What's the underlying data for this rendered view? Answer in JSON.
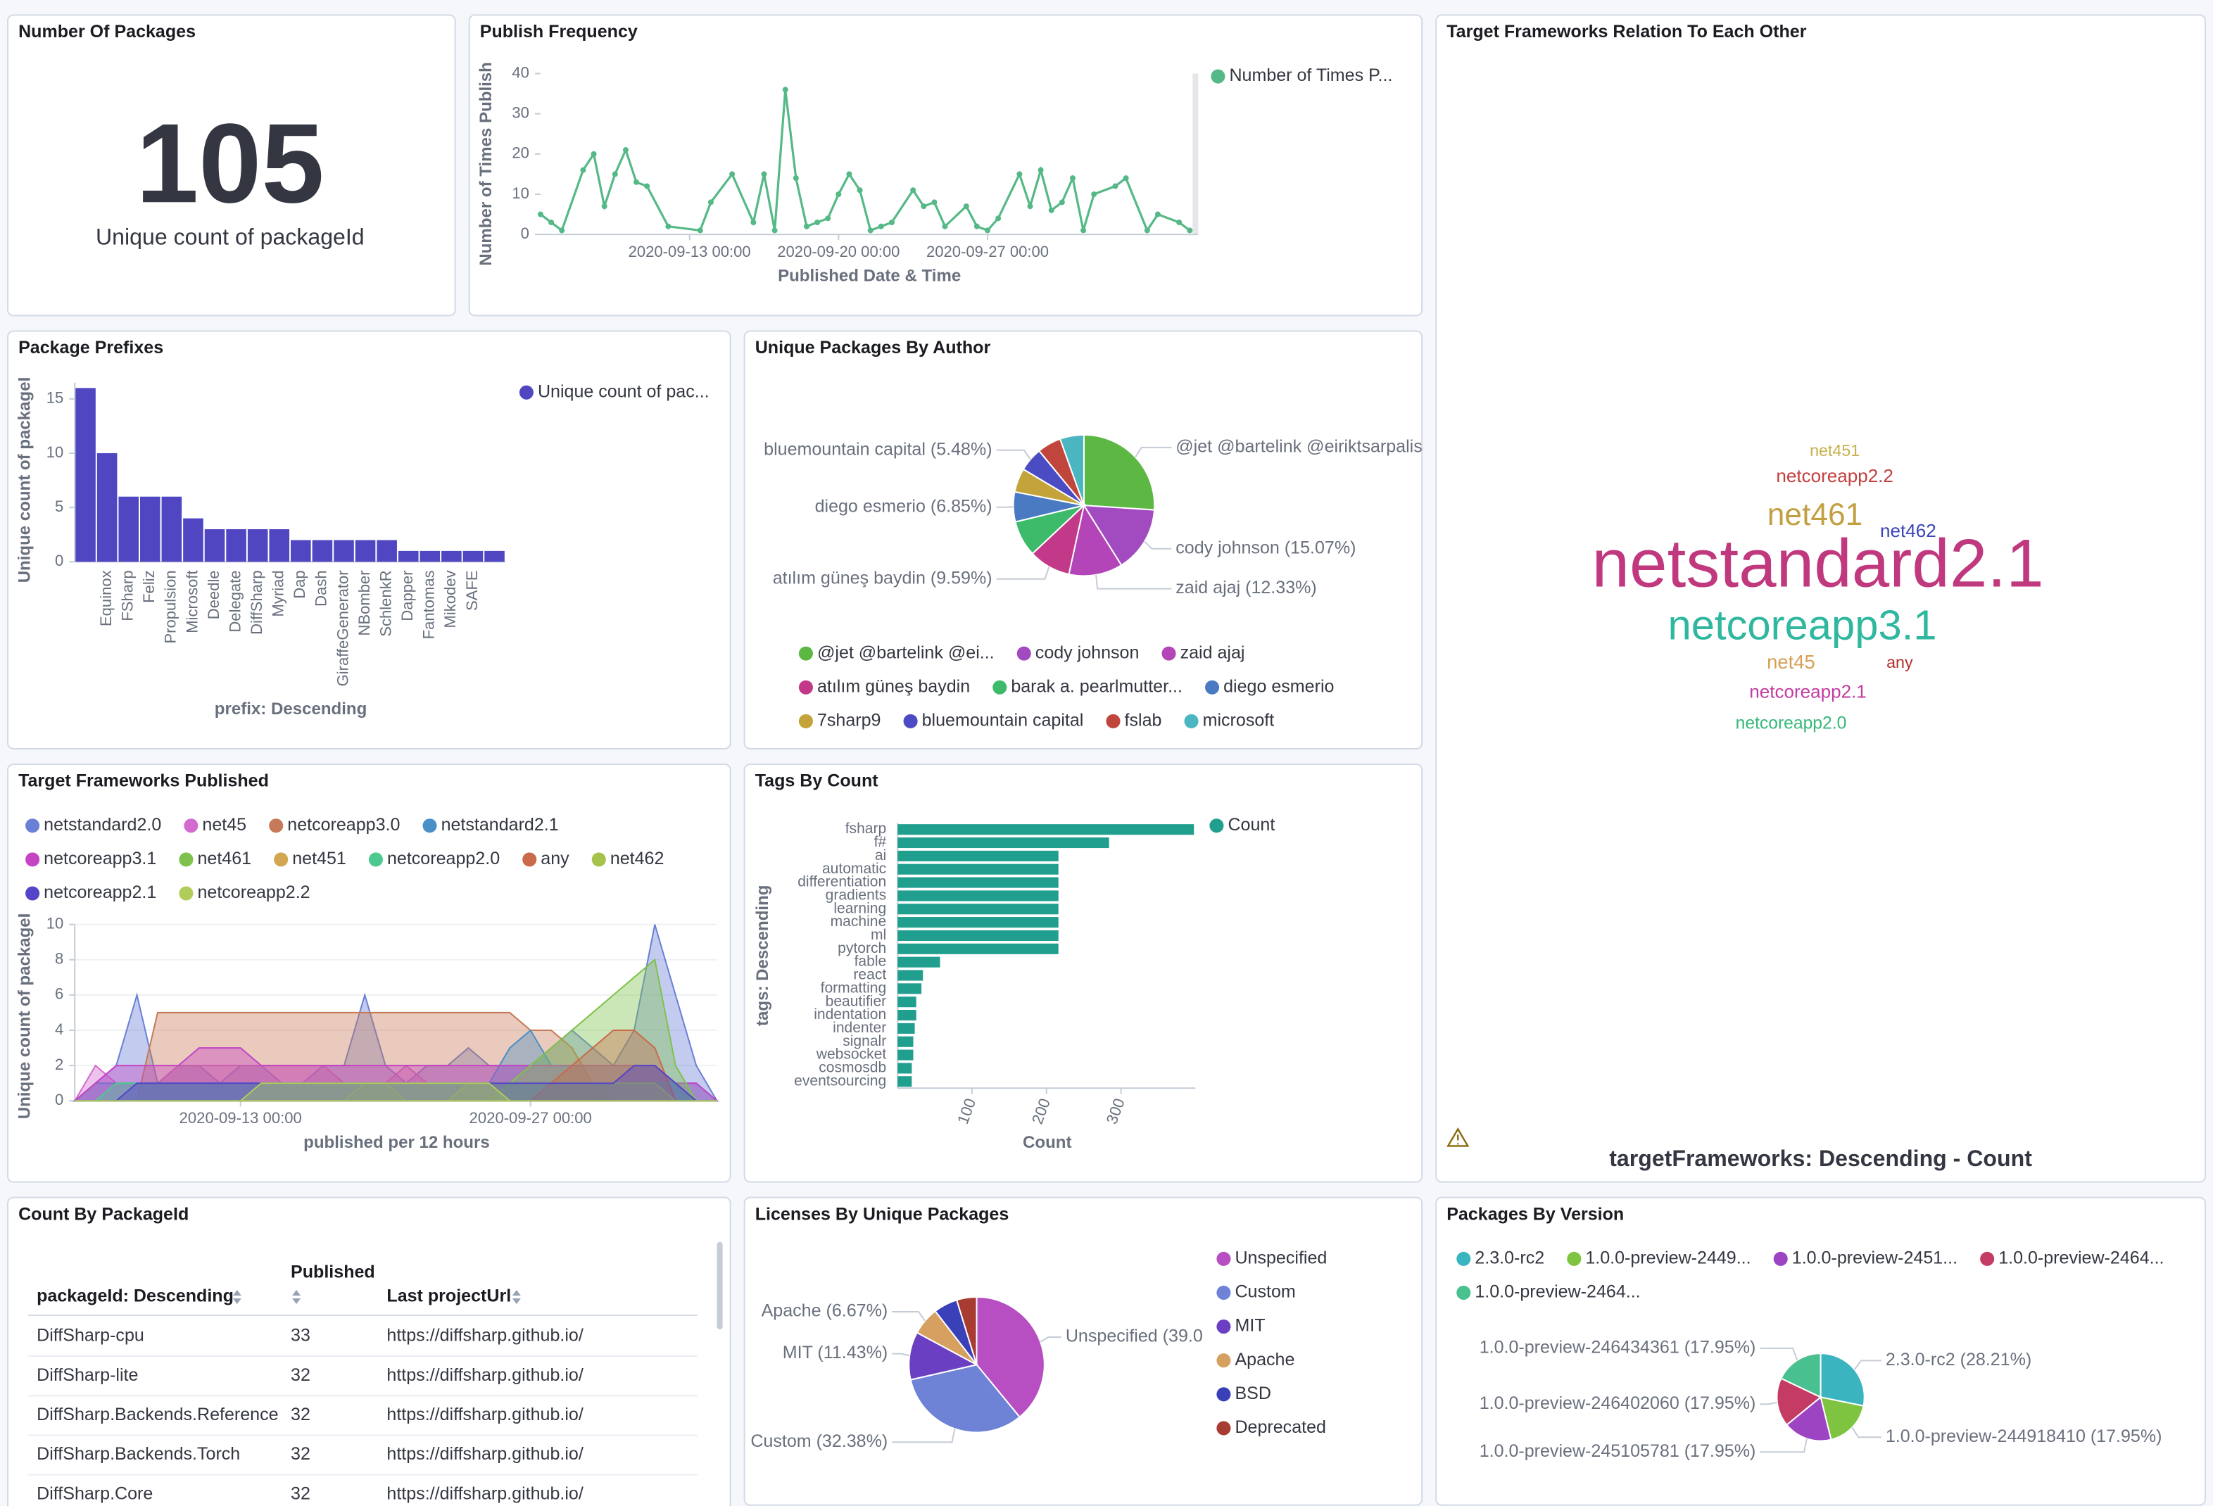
{
  "chart_data": [
    {
      "type": "metric",
      "title": "Number Of Packages",
      "value": 105,
      "label": "Unique count of packageId"
    },
    {
      "type": "line",
      "title": "Publish Frequency",
      "y_label": "Number of Times Publish",
      "x_label": "Published Date & Time",
      "x": [
        "2020-09-06 00:00",
        "2020-09-06 12:00",
        "2020-09-07 00:00",
        "2020-09-08 00:00",
        "2020-09-08 12:00",
        "2020-09-09 00:00",
        "2020-09-09 12:00",
        "2020-09-10 00:00",
        "2020-09-10 12:00",
        "2020-09-11 00:00",
        "2020-09-12 00:00",
        "2020-09-13 12:00",
        "2020-09-14 00:00",
        "2020-09-15 00:00",
        "2020-09-16 00:00",
        "2020-09-16 12:00",
        "2020-09-17 00:00",
        "2020-09-17 12:00",
        "2020-09-18 00:00",
        "2020-09-18 12:00",
        "2020-09-19 00:00",
        "2020-09-19 12:00",
        "2020-09-20 00:00",
        "2020-09-20 12:00",
        "2020-09-21 00:00",
        "2020-09-21 12:00",
        "2020-09-22 00:00",
        "2020-09-22 12:00",
        "2020-09-23 12:00",
        "2020-09-24 00:00",
        "2020-09-24 12:00",
        "2020-09-25 00:00",
        "2020-09-26 00:00",
        "2020-09-26 12:00",
        "2020-09-27 00:00",
        "2020-09-27 12:00",
        "2020-09-28 12:00",
        "2020-09-29 00:00",
        "2020-09-29 12:00",
        "2020-09-30 00:00",
        "2020-09-30 12:00",
        "2020-10-01 00:00",
        "2020-10-01 12:00",
        "2020-10-02 00:00",
        "2020-10-03 00:00",
        "2020-10-03 12:00",
        "2020-10-04 12:00",
        "2020-10-05 00:00",
        "2020-10-06 00:00",
        "2020-10-06 12:00"
      ],
      "series": [
        {
          "name": "Number of Times P...",
          "color": "#54b986",
          "values": [
            5,
            3,
            1,
            16,
            20,
            7,
            15,
            21,
            13,
            12,
            2,
            1,
            8,
            15,
            3,
            15,
            1,
            36,
            14,
            2,
            3,
            4,
            10,
            15,
            11,
            1,
            2,
            3,
            11,
            7,
            8,
            2,
            7,
            2,
            1,
            4,
            15,
            7,
            16,
            6,
            8,
            14,
            1,
            10,
            12,
            14,
            1,
            5,
            3,
            1
          ]
        }
      ],
      "xlim": [
        "2020-09-06 00:00",
        "2020-10-06 12:00"
      ],
      "xticks": [
        "2020-09-13 00:00",
        "2020-09-20 00:00",
        "2020-09-27 00:00"
      ],
      "ylim": [
        0,
        40
      ],
      "yticks": [
        0,
        10,
        20,
        30,
        40
      ]
    },
    {
      "type": "bar",
      "title": "Package Prefixes",
      "y_label": "Unique count of packageI",
      "x_label": "prefix: Descending",
      "categories": [
        null,
        "Equinox",
        "FSharp",
        "Feliz",
        "Propulsion",
        "Microsoft",
        "Deedle",
        "Delegate",
        "DiffSharp",
        "Myriad",
        "Dap",
        "Dash",
        "GiraffeGenerator",
        "NBomber",
        "SchlenkR",
        "Dapper",
        "Fantomas",
        "Mikodev",
        "SAFE",
        null
      ],
      "series": [
        {
          "name": "Unique count of pac...",
          "color": "#5046c2",
          "values": [
            16,
            10,
            6,
            6,
            6,
            4,
            3,
            3,
            3,
            3,
            2,
            2,
            2,
            2,
            2,
            1,
            1,
            1,
            1,
            1
          ]
        }
      ],
      "ylim": [
        0,
        16.5
      ],
      "yticks": [
        0,
        5,
        10,
        15
      ]
    },
    {
      "type": "pie",
      "title": "Unique Packages By Author",
      "categories": [
        "@jet @bartelink @ei...",
        "cody johnson",
        "zaid ajaj",
        "atılım güneş baydin",
        "barak a. pearlmutter...",
        "diego esmerio",
        "7sharp9",
        "bluemountain capital",
        "fslab",
        "microsoft"
      ],
      "values": [
        26.03,
        15.07,
        12.33,
        9.59,
        8.22,
        6.85,
        5.48,
        5.48,
        5.48,
        5.48
      ],
      "value_labels": [
        "@jet @bartelink @eiriktsarpalis",
        "cody johnson (15.07%)",
        "zaid ajaj (12.33%)",
        "atılım güneş baydin (9.59%)",
        null,
        "diego esmerio (6.85%)",
        null,
        "bluemountain capital (5.48%)",
        null,
        null
      ],
      "colors": [
        "#5cb843",
        "#a24ac0",
        "#b345b8",
        "#c3398a",
        "#3dbb6b",
        "#4a7ac2",
        "#c4a43a",
        "#4b4bc4",
        "#c0463d",
        "#4bb5c0"
      ]
    },
    {
      "type": "wordcloud",
      "title": "Target Frameworks Relation To Each Other",
      "x_label": "targetFrameworks: Descending - Count",
      "words": [
        "netstandard2.1",
        "netcoreapp3.1",
        "net461",
        "net45",
        "netcoreapp2.1",
        "netcoreapp2.2",
        "net462",
        "netcoreapp2.0",
        "net451",
        "any"
      ],
      "values": [
        60,
        34,
        23,
        11,
        10,
        10,
        10,
        9,
        8,
        8
      ],
      "colors": [
        "#c0397e",
        "#2fb7a0",
        "#c2a041",
        "#d6a058",
        "#c23ca0",
        "#c33f3f",
        "#3a44b5",
        "#35b87a",
        "#c8b04a",
        "#b0302a"
      ]
    },
    {
      "type": "area",
      "title": "Target Frameworks Published",
      "y_label": "Unique count of packageI",
      "x_label": "published per 12 hours",
      "x": [
        "2020-09-05 00:00",
        "2020-09-06 00:00",
        "2020-09-07 00:00",
        "2020-09-08 00:00",
        "2020-09-09 00:00",
        "2020-09-10 00:00",
        "2020-09-11 00:00",
        "2020-09-12 00:00",
        "2020-09-13 00:00",
        "2020-09-14 00:00",
        "2020-09-15 00:00",
        "2020-09-16 00:00",
        "2020-09-17 00:00",
        "2020-09-18 00:00",
        "2020-09-19 00:00",
        "2020-09-20 00:00",
        "2020-09-21 00:00",
        "2020-09-22 00:00",
        "2020-09-23 00:00",
        "2020-09-24 00:00",
        "2020-09-25 00:00",
        "2020-09-26 00:00",
        "2020-09-27 00:00",
        "2020-09-28 00:00",
        "2020-09-29 00:00",
        "2020-09-30 00:00",
        "2020-10-01 00:00",
        "2020-10-02 00:00",
        "2020-10-03 00:00",
        "2020-10-04 00:00",
        "2020-10-05 00:00",
        "2020-10-06 00:00"
      ],
      "series": [
        {
          "name": "netstandard2.0",
          "color": "#6a7fd6",
          "values": [
            0,
            1,
            2,
            6,
            1,
            2,
            2,
            1,
            2,
            2,
            1,
            1,
            2,
            2,
            6,
            2,
            1,
            2,
            2,
            3,
            2,
            2,
            2,
            3,
            4,
            3,
            2,
            4,
            10,
            6,
            2,
            0
          ]
        },
        {
          "name": "net45",
          "color": "#d36ad0",
          "values": [
            0,
            2,
            1,
            1,
            1,
            2,
            2,
            2,
            2,
            2,
            2,
            2,
            2,
            1,
            1,
            1,
            2,
            1,
            1,
            1,
            1,
            1,
            1,
            1,
            1,
            1,
            1,
            1,
            1,
            1,
            0,
            0
          ]
        },
        {
          "name": "netcoreapp3.0",
          "color": "#c77a57",
          "values": [
            0,
            0,
            0,
            0,
            5,
            5,
            5,
            5,
            5,
            5,
            5,
            5,
            5,
            5,
            5,
            5,
            5,
            5,
            5,
            5,
            5,
            5,
            4,
            4,
            3,
            1,
            0,
            0,
            0,
            0,
            0,
            0
          ]
        },
        {
          "name": "netstandard2.1",
          "color": "#4a8fc6",
          "values": [
            0,
            1,
            1,
            1,
            1,
            1,
            1,
            1,
            1,
            1,
            1,
            1,
            1,
            1,
            1,
            1,
            1,
            1,
            1,
            1,
            1,
            3,
            4,
            2,
            2,
            2,
            2,
            2,
            2,
            1,
            1,
            0
          ]
        },
        {
          "name": "netcoreapp3.1",
          "color": "#c444c4",
          "values": [
            0,
            1,
            2,
            2,
            2,
            2,
            3,
            3,
            3,
            2,
            2,
            2,
            2,
            2,
            2,
            2,
            2,
            2,
            2,
            2,
            2,
            2,
            2,
            2,
            2,
            2,
            2,
            2,
            2,
            1,
            1,
            0
          ]
        },
        {
          "name": "net461",
          "color": "#7ec24d",
          "values": [
            0,
            0,
            0,
            0,
            0,
            0,
            0,
            0,
            0,
            0,
            0,
            0,
            0,
            0,
            0,
            0,
            0,
            0,
            0,
            0,
            0,
            1,
            2,
            3,
            4,
            5,
            6,
            7,
            8,
            2,
            0,
            0
          ]
        },
        {
          "name": "net451",
          "color": "#d2a752",
          "values": [
            0,
            0,
            0,
            0,
            0,
            0,
            0,
            0,
            0,
            0,
            0,
            0,
            0,
            0,
            1,
            1,
            0,
            0,
            0,
            0,
            0,
            0,
            0,
            0,
            0,
            0,
            0,
            0,
            0,
            0,
            0,
            0
          ]
        },
        {
          "name": "netcoreapp2.0",
          "color": "#4cc98f",
          "values": [
            0,
            0,
            1,
            1,
            1,
            1,
            1,
            1,
            1,
            1,
            1,
            1,
            1,
            1,
            1,
            1,
            1,
            1,
            1,
            1,
            1,
            1,
            1,
            1,
            1,
            1,
            1,
            1,
            1,
            1,
            0,
            0
          ]
        },
        {
          "name": "any",
          "color": "#c96b4a",
          "values": [
            0,
            0,
            0,
            0,
            0,
            0,
            0,
            0,
            0,
            0,
            0,
            0,
            0,
            0,
            0,
            0,
            0,
            0,
            0,
            0,
            0,
            0,
            0,
            1,
            2,
            3,
            4,
            4,
            3,
            0,
            0,
            0
          ]
        },
        {
          "name": "net462",
          "color": "#a5c24a",
          "values": [
            0,
            0,
            0,
            0,
            0,
            0,
            0,
            0,
            0,
            0,
            0,
            0,
            0,
            0,
            0,
            0,
            0,
            0,
            0,
            1,
            1,
            1,
            1,
            1,
            1,
            1,
            1,
            1,
            1,
            0,
            0,
            0
          ]
        },
        {
          "name": "netcoreapp2.1",
          "color": "#5544c8",
          "values": [
            0,
            0,
            0,
            1,
            1,
            1,
            1,
            1,
            1,
            1,
            1,
            1,
            1,
            1,
            1,
            1,
            1,
            1,
            1,
            1,
            1,
            1,
            1,
            1,
            1,
            1,
            1,
            2,
            2,
            1,
            0,
            0
          ]
        },
        {
          "name": "netcoreapp2.2",
          "color": "#b0cc5a",
          "values": [
            0,
            0,
            0,
            0,
            0,
            0,
            0,
            0,
            0,
            1,
            1,
            1,
            1,
            1,
            1,
            1,
            1,
            1,
            1,
            1,
            1,
            0,
            0,
            0,
            0,
            0,
            0,
            0,
            0,
            0,
            0,
            0
          ]
        }
      ],
      "xlim": [
        "2020-09-05 00:00",
        "2020-10-06 00:00"
      ],
      "xticks": [
        "2020-09-13 00:00",
        "2020-09-27 00:00"
      ],
      "ylim": [
        0,
        10
      ],
      "yticks": [
        0,
        2,
        4,
        6,
        8,
        10
      ],
      "grid": true
    },
    {
      "type": "hbar",
      "title": "Tags By Count",
      "y_label": "tags: Descending",
      "x_label": "Count",
      "categories": [
        "fsharp",
        "f#",
        "ai",
        "automatic",
        "differentiation",
        "gradients",
        "learning",
        "machine",
        "ml",
        "pytorch",
        "fable",
        "react",
        "formatting",
        "beautifier",
        "indentation",
        "indenter",
        "signalr",
        "websocket",
        "cosmosdb",
        "eventsourcing"
      ],
      "series": [
        {
          "name": "Count",
          "color": "#209f8f",
          "values": [
            398,
            284,
            216,
            216,
            216,
            216,
            216,
            216,
            216,
            216,
            57,
            34,
            32,
            25,
            25,
            23,
            21,
            21,
            19,
            19
          ]
        }
      ],
      "xlim": [
        0,
        400
      ],
      "xticks": [
        100,
        200,
        300
      ]
    },
    {
      "type": "pie",
      "title": "Licenses By Unique Packages",
      "categories": [
        "Unspecified",
        "Custom",
        "MIT",
        "Apache",
        "BSD",
        "Deprecated"
      ],
      "values": [
        39.05,
        32.38,
        11.43,
        6.67,
        5.71,
        4.76
      ],
      "value_labels": [
        "Unspecified (39.0",
        "Custom (32.38%)",
        "MIT (11.43%)",
        "Apache (6.67%)",
        null,
        null
      ],
      "colors": [
        "#b74fc2",
        "#6e83d6",
        "#6a3fc2",
        "#d6a060",
        "#3a40b8",
        "#a83c32"
      ]
    },
    {
      "type": "pie",
      "title": "Packages By Version",
      "categories": [
        "2.3.0-rc2",
        "1.0.0-preview-2449...",
        "1.0.0-preview-2451...",
        "1.0.0-preview-2464...",
        "1.0.0-preview-2464..."
      ],
      "values": [
        28.21,
        17.95,
        17.95,
        17.95,
        17.95
      ],
      "value_labels": [
        "2.3.0-rc2 (28.21%)",
        "1.0.0-preview-244918410 (17.95%)",
        "1.0.0-preview-245105781 (17.95%)",
        "1.0.0-preview-246402060 (17.95%)",
        "1.0.0-preview-246434361 (17.95%)"
      ],
      "colors": [
        "#3ab5c0",
        "#7ec440",
        "#9c44c2",
        "#c43c64",
        "#48c090"
      ]
    }
  ],
  "table": {
    "title": "Count By PackageId",
    "columns": [
      "packageId: Descending",
      "Published",
      "Last projectUrl"
    ],
    "rows": [
      [
        "DiffSharp-cpu",
        33,
        "https://diffsharp.github.io/"
      ],
      [
        "DiffSharp-lite",
        32,
        "https://diffsharp.github.io/"
      ],
      [
        "DiffSharp.Backends.Reference",
        32,
        "https://diffsharp.github.io/"
      ],
      [
        "DiffSharp.Backends.Torch",
        32,
        "https://diffsharp.github.io/"
      ],
      [
        "DiffSharp.Core",
        32,
        "https://diffsharp.github.io/"
      ]
    ]
  }
}
